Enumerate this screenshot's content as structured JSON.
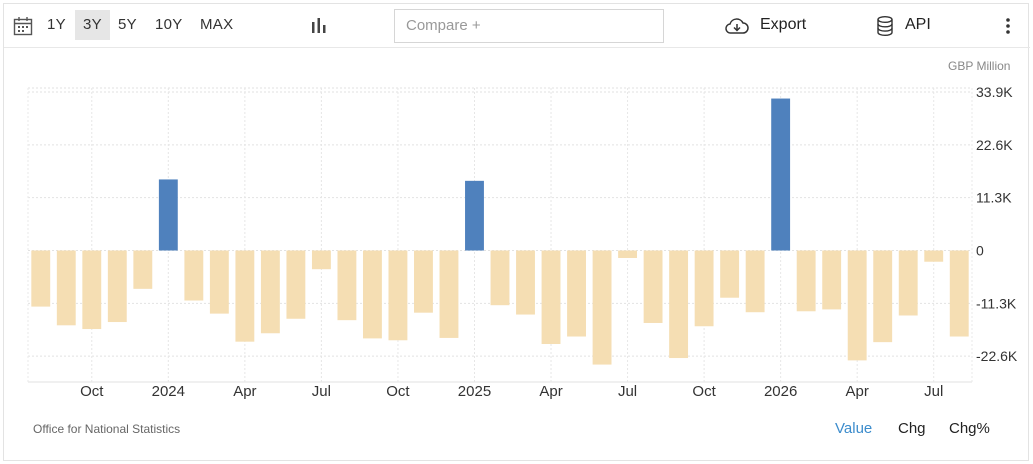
{
  "toolbar": {
    "ranges": [
      "1Y",
      "3Y",
      "5Y",
      "10Y",
      "MAX"
    ],
    "active_range": "3Y",
    "compare_placeholder": "Compare +",
    "export_label": "Export",
    "api_label": "API"
  },
  "unit_label": "GBP Million",
  "source": "Office for National Statistics",
  "footer": {
    "value_label": "Value",
    "chg_label": "Chg",
    "chgpct_label": "Chg%"
  },
  "colors": {
    "positive": "#4f81bd",
    "negative": "#f5deb3",
    "active_tab": "#3c8ccc"
  },
  "chart_data": {
    "type": "bar",
    "unit": "GBP Million",
    "ylim": [
      -26000,
      34000
    ],
    "yticks": [
      {
        "v": 33900,
        "label": "33.9K"
      },
      {
        "v": 22600,
        "label": "22.6K"
      },
      {
        "v": 11300,
        "label": "11.3K"
      },
      {
        "v": 0,
        "label": "0"
      },
      {
        "v": -11300,
        "label": "-11.3K"
      },
      {
        "v": -22600,
        "label": "-22.6K"
      }
    ],
    "xticks": [
      {
        "i": 2.5,
        "label": "Oct"
      },
      {
        "i": 5.5,
        "label": "2024"
      },
      {
        "i": 8.5,
        "label": "Apr"
      },
      {
        "i": 11.5,
        "label": "Jul"
      },
      {
        "i": 14.5,
        "label": "Oct"
      },
      {
        "i": 17.5,
        "label": "2025"
      },
      {
        "i": 20.5,
        "label": "Apr"
      },
      {
        "i": 23.5,
        "label": "Jul"
      },
      {
        "i": 26.5,
        "label": "Oct"
      },
      {
        "i": 29.5,
        "label": "2026"
      },
      {
        "i": 32.5,
        "label": "Apr"
      },
      {
        "i": 35.5,
        "label": "Jul"
      }
    ],
    "grid": true,
    "values": [
      -12000,
      -16000,
      -16800,
      -15300,
      -8200,
      15200,
      -10700,
      -13500,
      -19500,
      -17700,
      -14600,
      -4000,
      -14900,
      -18800,
      -19200,
      -13300,
      -18700,
      14900,
      -11700,
      -13700,
      -20000,
      -18400,
      -24400,
      -1600,
      -15500,
      -23000,
      -16200,
      -10100,
      -13200,
      32500,
      -13000,
      -12600,
      -23500,
      -19600,
      -13900,
      -2400,
      -18400
    ]
  }
}
